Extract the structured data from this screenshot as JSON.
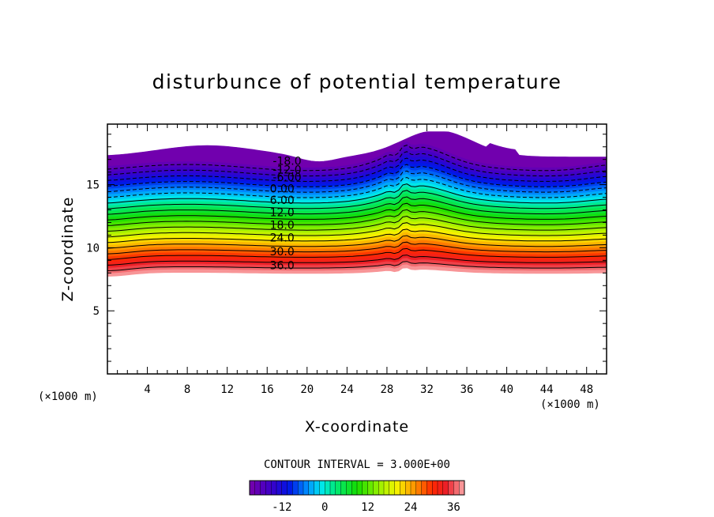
{
  "chart_data": {
    "type": "contour",
    "title": "disturbunce of potential temperature",
    "xlabel": "X-coordinate",
    "ylabel": "Z-coordinate",
    "x_unit_label": "(×1000 m)",
    "y_unit_label": "(×1000 m)",
    "xlim": [
      0,
      50
    ],
    "ylim": [
      0,
      19.8
    ],
    "x_ticks": [
      4,
      8,
      12,
      16,
      20,
      24,
      28,
      32,
      36,
      40,
      44,
      48
    ],
    "y_ticks": [
      5,
      10,
      15
    ],
    "x_tick_labels": [
      "4",
      "8",
      "12",
      "16",
      "20",
      "24",
      "28",
      "32",
      "36",
      "40",
      "44",
      "48"
    ],
    "y_tick_labels": [
      "5",
      "10",
      "15"
    ],
    "contour_interval_label": "CONTOUR INTERVAL = 3.000E+00",
    "contour_interval": 3.0,
    "value_range": [
      -21,
      39
    ],
    "contour_labels": [
      {
        "text": "-18.0",
        "value": -18,
        "x": 18.0,
        "z": 16.9
      },
      {
        "text": "-12.0",
        "value": -12,
        "x": 18.0,
        "z": 16.2
      },
      {
        "text": "-6.00",
        "value": -6,
        "x": 18.0,
        "z": 15.6
      },
      {
        "text": "0.00",
        "value": 0,
        "x": 17.5,
        "z": 14.7
      },
      {
        "text": "6.00",
        "value": 6,
        "x": 17.5,
        "z": 13.8
      },
      {
        "text": "12.0",
        "value": 12,
        "x": 17.5,
        "z": 12.8
      },
      {
        "text": "18.0",
        "value": 18,
        "x": 17.5,
        "z": 11.8
      },
      {
        "text": "24.0",
        "value": 24,
        "x": 17.5,
        "z": 10.8
      },
      {
        "text": "30.0",
        "value": 30,
        "x": 17.5,
        "z": 9.7
      },
      {
        "text": "36.0",
        "value": 36,
        "x": 17.5,
        "z": 8.6
      }
    ],
    "colorbar": {
      "ticks": [
        -12,
        0,
        12,
        24,
        36
      ],
      "tick_labels": [
        "-12",
        "0",
        "12",
        "24",
        "36"
      ]
    },
    "legend": "colorbar-bottom",
    "grid": false
  }
}
